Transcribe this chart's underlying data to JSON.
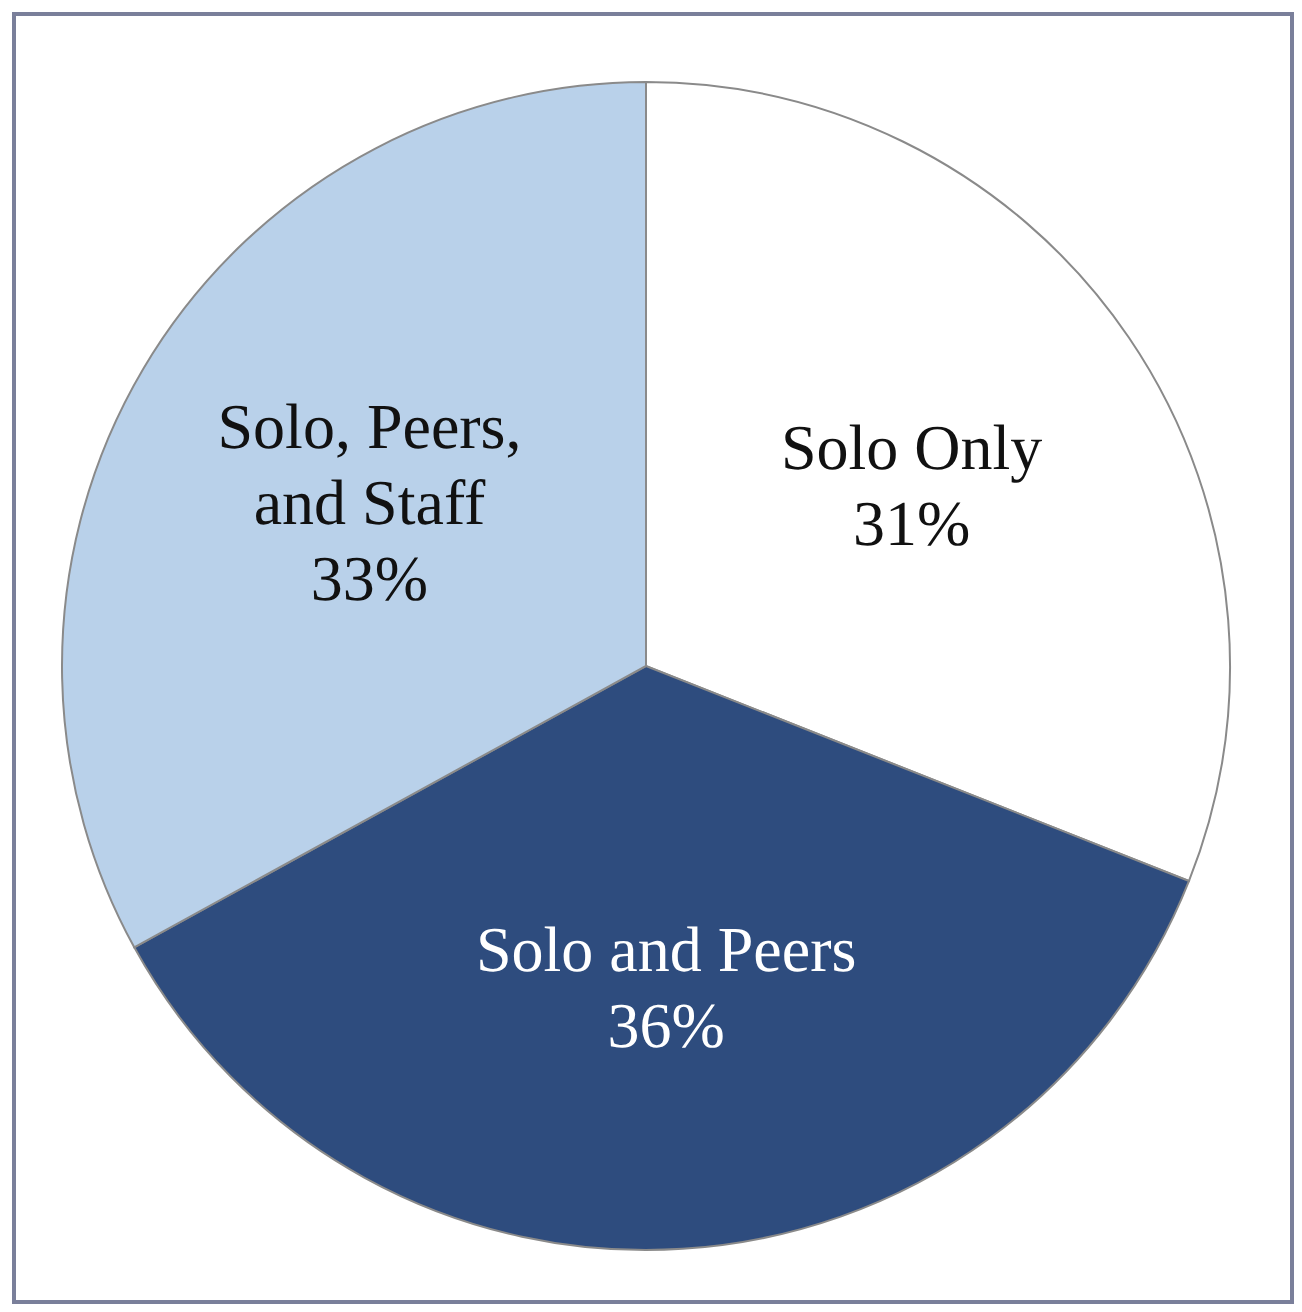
{
  "chart_data": {
    "type": "pie",
    "categories": [
      "Solo Only",
      "Solo and Peers",
      "Solo, Peers, and Staff"
    ],
    "values": [
      31,
      36,
      33
    ],
    "value_labels": [
      "31%",
      "36%",
      "33%"
    ],
    "colors": [
      "#ffffff",
      "#2e4c7e",
      "#b9d1ea"
    ],
    "legend": false
  }
}
